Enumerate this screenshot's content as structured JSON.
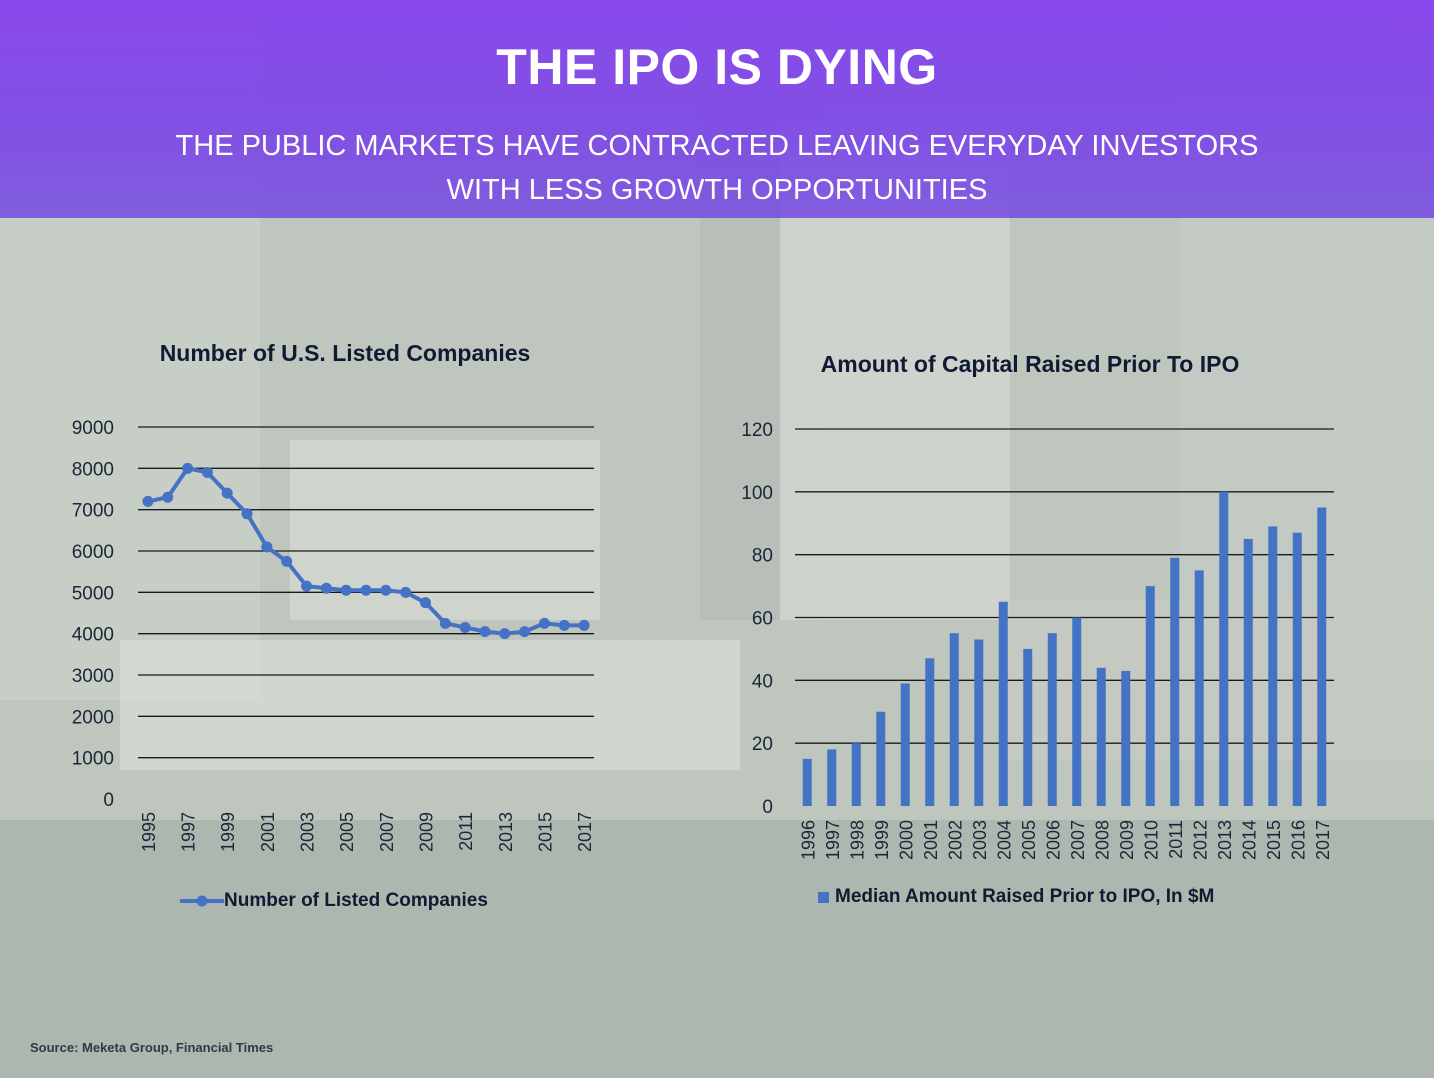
{
  "header": {
    "title": "THE IPO IS DYING",
    "subtitle": "THE PUBLIC MARKETS HAVE CONTRACTED LEAVING EVERYDAY INVESTORS WITH LESS GROWTH OPPORTUNITIES"
  },
  "source": "Source: Meketa Group, Financial Times",
  "colors": {
    "header": "#8442ee",
    "series": "#4472c4",
    "gridline": "#1a1a1a"
  },
  "chart_data": [
    {
      "type": "line",
      "title": "Number of U.S. Listed Companies",
      "xlabel": "",
      "ylabel": "",
      "x": [
        1995,
        1996,
        1997,
        1998,
        1999,
        2000,
        2001,
        2002,
        2003,
        2004,
        2005,
        2006,
        2007,
        2008,
        2009,
        2010,
        2011,
        2012,
        2013,
        2014,
        2015,
        2016,
        2017
      ],
      "x_tick_labels": [
        "1995",
        "1997",
        "1999",
        "2001",
        "2003",
        "2005",
        "2007",
        "2009",
        "2011",
        "2013",
        "2015",
        "2017"
      ],
      "y_ticks": [
        "0",
        "1000",
        "2000",
        "3000",
        "4000",
        "5000",
        "6000",
        "7000",
        "8000",
        "9000"
      ],
      "ylim": [
        0,
        9000
      ],
      "series": [
        {
          "name": "Number of Listed Companies",
          "values": [
            7200,
            7300,
            8000,
            7900,
            7400,
            6900,
            6100,
            5750,
            5150,
            5100,
            5050,
            5050,
            5050,
            5000,
            4750,
            4250,
            4150,
            4050,
            4000,
            4050,
            4250,
            4200,
            4200
          ]
        }
      ],
      "legend": "bottom",
      "grid": true
    },
    {
      "type": "bar",
      "title": "Amount of Capital Raised Prior To IPO",
      "xlabel": "",
      "ylabel": "",
      "categories": [
        "1996",
        "1997",
        "1998",
        "1999",
        "2000",
        "2001",
        "2002",
        "2003",
        "2004",
        "2005",
        "2006",
        "2007",
        "2008",
        "2009",
        "2010",
        "2011",
        "2012",
        "2013",
        "2014",
        "2015",
        "2016",
        "2017"
      ],
      "y_ticks": [
        "0",
        "20",
        "40",
        "60",
        "80",
        "100",
        "120"
      ],
      "ylim": [
        0,
        120
      ],
      "series": [
        {
          "name": "Median Amount Raised Prior to IPO, In $M",
          "values": [
            15,
            18,
            20,
            30,
            39,
            47,
            55,
            53,
            65,
            50,
            55,
            60,
            44,
            43,
            70,
            79,
            75,
            100,
            85,
            89,
            87,
            95
          ]
        }
      ],
      "legend": "bottom",
      "grid": true
    }
  ]
}
